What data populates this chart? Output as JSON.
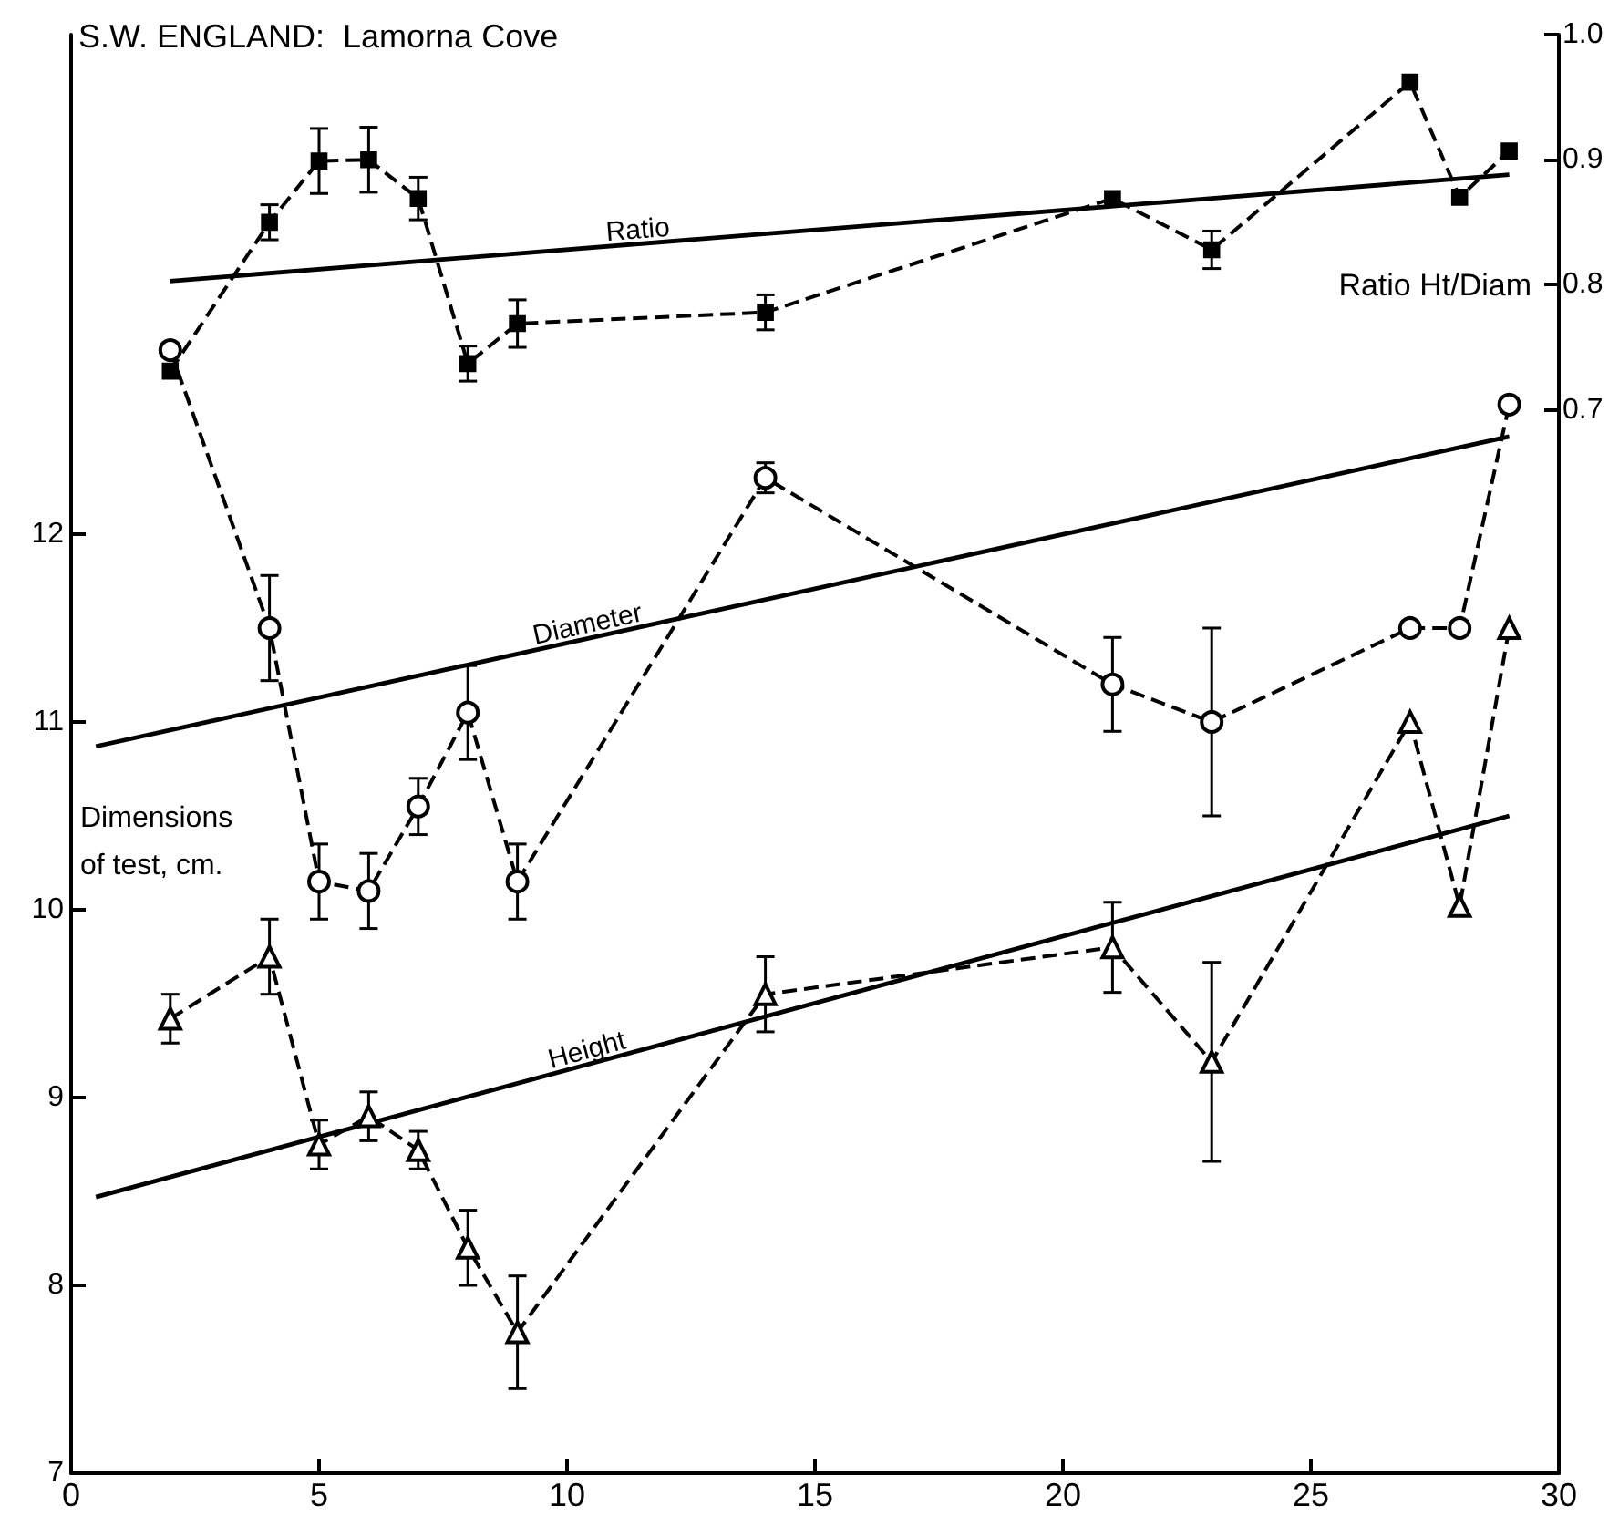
{
  "chart_data": {
    "type": "line",
    "title": "S.W. ENGLAND:  Lamorna Cove",
    "ylabel": "Dimensions of test, cm.",
    "y2label": "Ratio Ht/Diam",
    "xlim": [
      0,
      30
    ],
    "xticks": [
      0,
      5,
      10,
      15,
      20,
      25,
      30
    ],
    "ylim": [
      7,
      14.66
    ],
    "yticks": [
      7,
      8,
      9,
      10,
      11,
      12
    ],
    "y2lim": [
      -0.15,
      1.0
    ],
    "y2ticks": [
      0.7,
      0.8,
      0.9,
      {
        "value": 1.0,
        "label": "1.0"
      }
    ],
    "series": [
      {
        "axis": "y2",
        "color": "#000000",
        "marker": "square",
        "line_style": "dashed",
        "x": [
          2,
          4,
          5,
          6,
          7,
          8,
          9,
          14,
          21,
          23,
          27,
          28,
          29
        ],
        "values": [
          0.731,
          0.85,
          0.899,
          0.9,
          0.869,
          0.737,
          0.769,
          0.778,
          0.869,
          0.828,
          0.962,
          0.87,
          0.907
        ],
        "errors": [
          null,
          0.014,
          0.026,
          0.026,
          0.017,
          0.014,
          0.019,
          0.014,
          null,
          0.015,
          null,
          null,
          null
        ]
      },
      {
        "color": "#000000",
        "marker": "circle",
        "line_style": "dashed",
        "x": [
          2,
          4,
          5,
          6,
          7,
          8,
          9,
          14,
          21,
          23,
          27,
          28,
          29
        ],
        "values": [
          12.98,
          11.5,
          10.15,
          10.1,
          10.55,
          11.05,
          10.15,
          12.3,
          11.2,
          11.0,
          11.5,
          11.5,
          12.69
        ],
        "errors": [
          null,
          0.28,
          0.2,
          0.2,
          0.15,
          0.25,
          0.2,
          0.08,
          0.25,
          0.5,
          null,
          null,
          null
        ]
      },
      {
        "color": "#000000",
        "marker": "triangle",
        "line_style": "dashed",
        "x": [
          2,
          4,
          5,
          6,
          7,
          8,
          9,
          14,
          21,
          23,
          27,
          28,
          29
        ],
        "values": [
          9.42,
          9.75,
          8.75,
          8.9,
          8.72,
          8.2,
          7.75,
          9.55,
          9.8,
          9.19,
          11.0,
          10.02,
          11.5
        ],
        "errors": [
          0.13,
          0.2,
          0.13,
          0.13,
          0.1,
          0.2,
          0.3,
          0.2,
          0.24,
          0.53,
          null,
          null,
          null
        ]
      },
      {
        "name": "Ratio",
        "axis": "y2",
        "color": "#000000",
        "marker": "none",
        "line_style": "solid",
        "x": [
          2,
          29
        ],
        "values": [
          0.803,
          0.888
        ]
      },
      {
        "name": "Diameter",
        "color": "#000000",
        "marker": "none",
        "line_style": "solid",
        "x": [
          0.5,
          29
        ],
        "values": [
          10.87,
          12.52
        ]
      },
      {
        "name": "Height",
        "color": "#000000",
        "marker": "none",
        "line_style": "solid",
        "x": [
          0.5,
          29
        ],
        "values": [
          8.47,
          10.5
        ]
      }
    ]
  }
}
